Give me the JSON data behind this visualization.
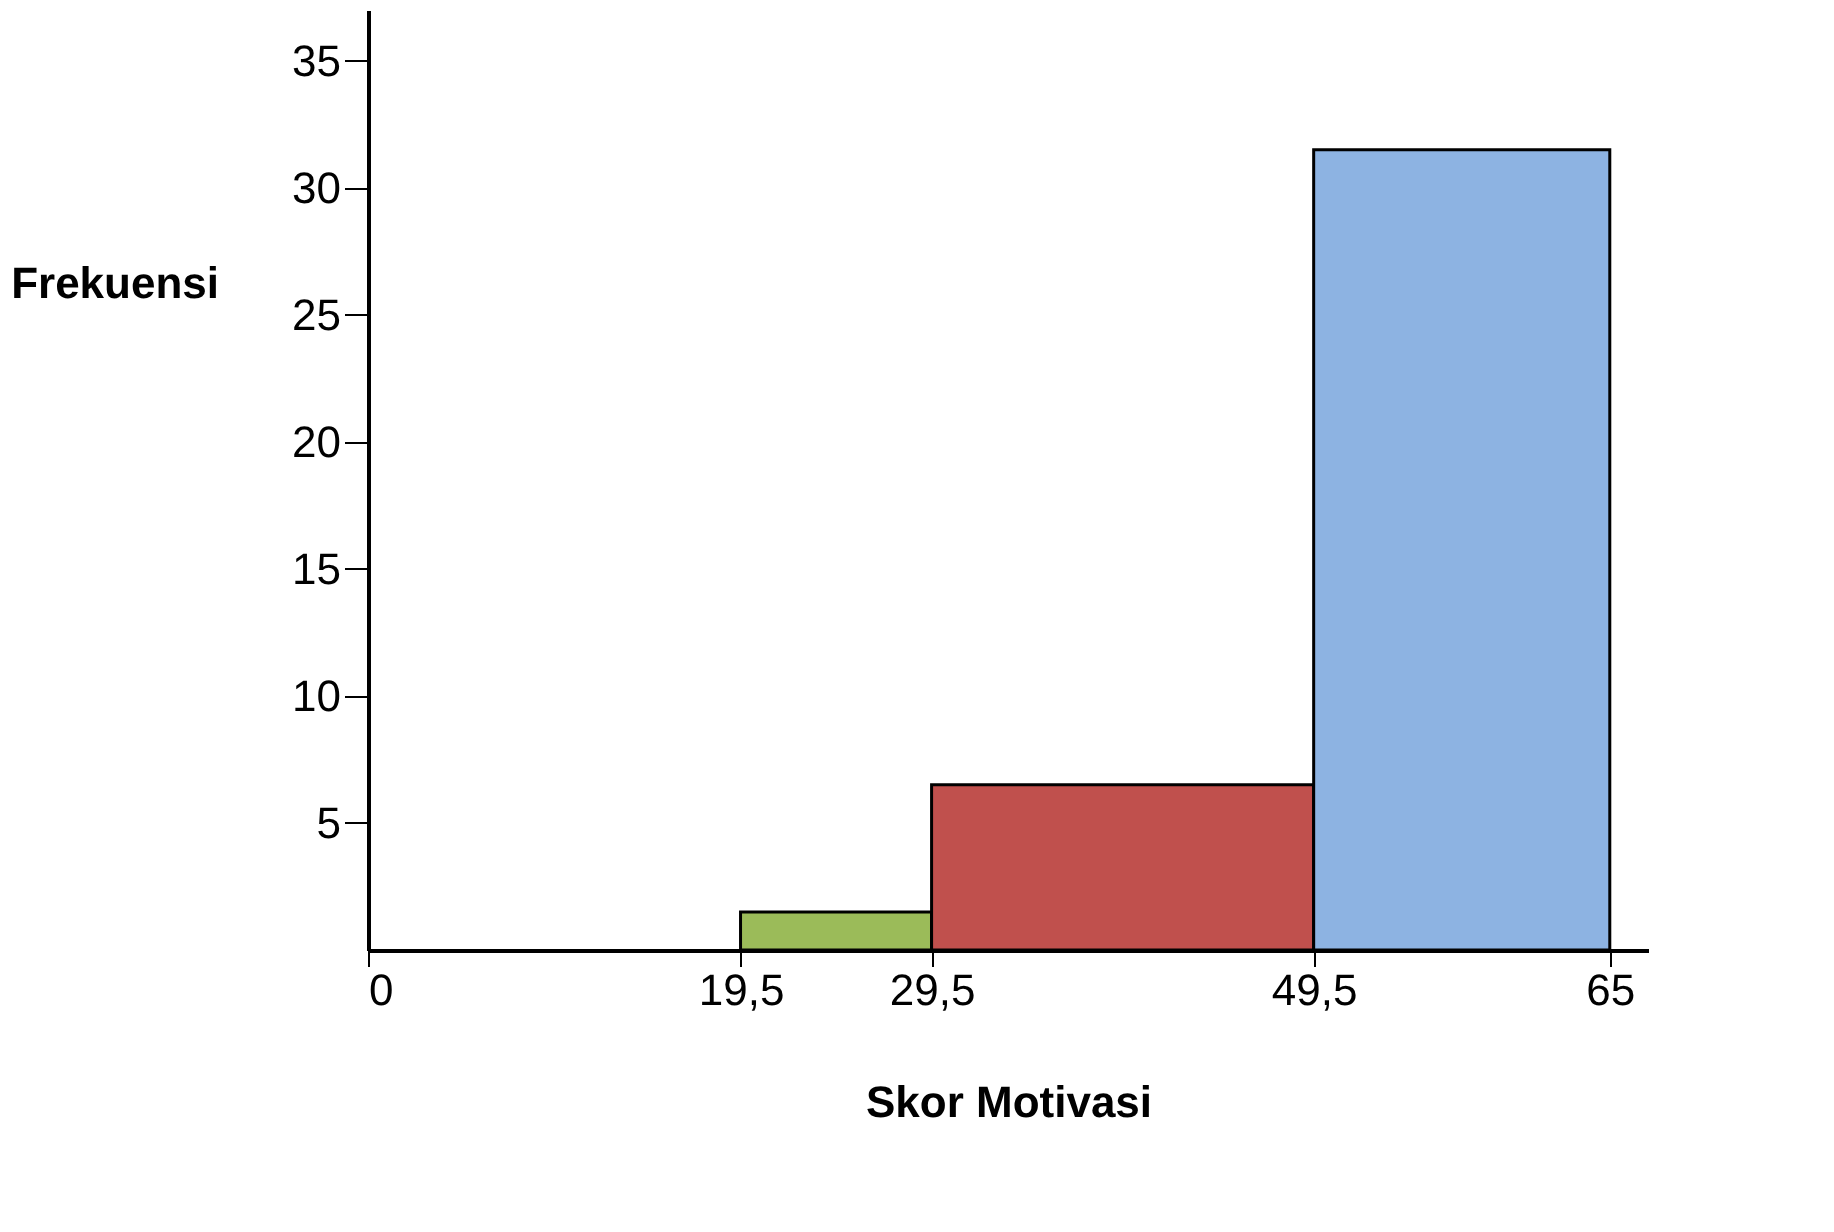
{
  "chart_data": {
    "type": "histogram",
    "xlabel": "Skor Motivasi",
    "ylabel": "Frekuensi",
    "bins": [
      19.5,
      29.5,
      49.5,
      65
    ],
    "values": [
      1.5,
      6.5,
      31.5
    ],
    "colors": [
      "#9bbb59",
      "#c0504d",
      "#8db3e2"
    ],
    "xlim": [
      0,
      67
    ],
    "xticks": [
      0,
      {
        "value": 19.5,
        "label": "19,5"
      },
      {
        "value": 29.5,
        "label": "29,5"
      },
      {
        "value": 49.5,
        "label": "49,5"
      },
      65
    ],
    "ylim": [
      0,
      37
    ],
    "yticks": [
      5,
      10,
      15,
      20,
      25,
      30,
      35
    ],
    "grid": false
  }
}
